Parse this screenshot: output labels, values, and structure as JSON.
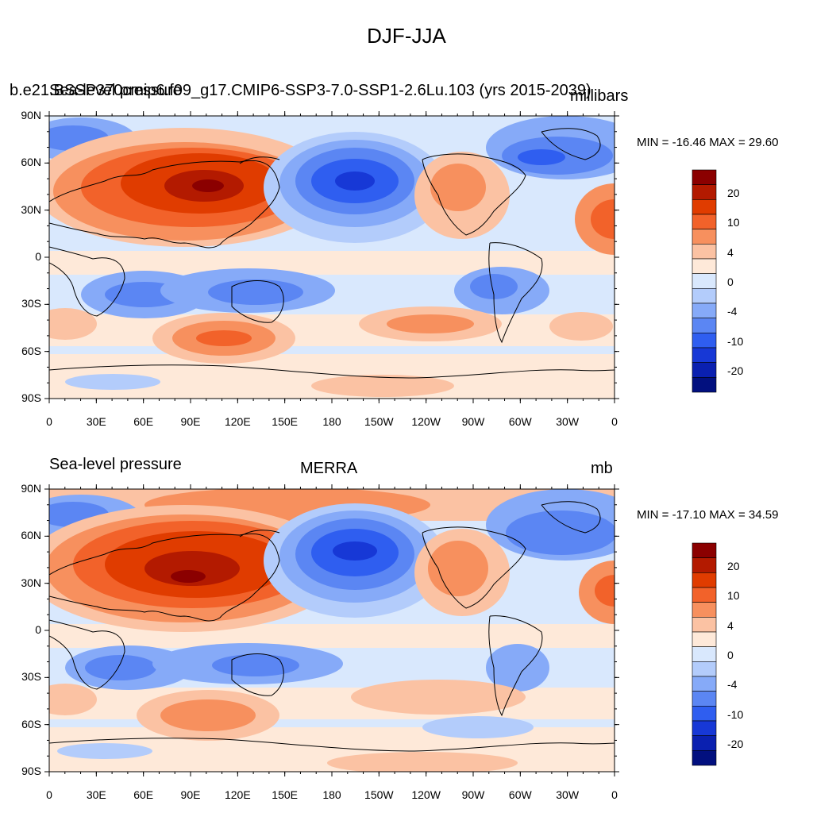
{
  "figure_title": "DJF-JJA",
  "panels": [
    {
      "left_title": "Sea-level pressure",
      "center_title": "b.e21.BSSP370cmip6.f09_g17.CMIP6-SSP3-7.0-SSP1-2.6Lu.103 (yrs 2015-2039)",
      "right_title": "millibars",
      "minmax": "MIN = -16.46 MAX =  29.60"
    },
    {
      "left_title": "Sea-level pressure",
      "center_title": "MERRA",
      "right_title": "mb",
      "minmax": "MIN = -17.10 MAX =  34.59"
    }
  ],
  "lat_labels": [
    "90N",
    "60N",
    "30N",
    "0",
    "30S",
    "60S",
    "90S"
  ],
  "lon_labels": [
    "0",
    "30E",
    "60E",
    "90E",
    "120E",
    "150E",
    "180",
    "150W",
    "120W",
    "90W",
    "60W",
    "30W",
    "0"
  ],
  "colorbar": {
    "labels": [
      "20",
      "10",
      "4",
      "0",
      "-4",
      "-10",
      "-20"
    ],
    "colors": [
      "#8b0000",
      "#b31a00",
      "#e03c00",
      "#f2622a",
      "#f7905e",
      "#fbc2a3",
      "#fee9d9",
      "#d9e8fd",
      "#b3ccfb",
      "#86aaf8",
      "#5b86f3",
      "#2f5ef0",
      "#1738d6",
      "#0a20b0",
      "#02107f"
    ]
  }
}
